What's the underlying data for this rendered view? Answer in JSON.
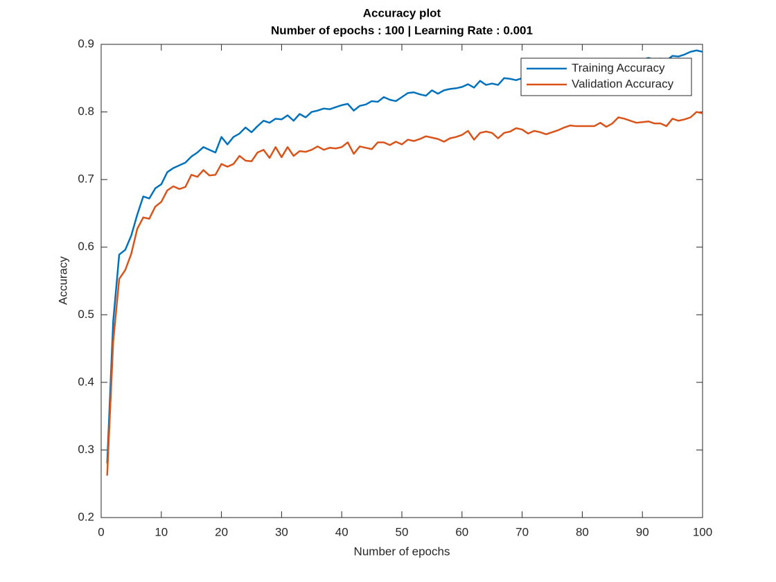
{
  "chart_data": {
    "type": "line",
    "title": "Accuracy plot",
    "subtitle": "Number of epochs : 100 | Learning Rate : 0.001",
    "x_label": "Number of epochs",
    "y_label": "Accuracy",
    "x": [
      1,
      2,
      3,
      4,
      5,
      6,
      7,
      8,
      9,
      10,
      11,
      12,
      13,
      14,
      15,
      16,
      17,
      18,
      19,
      20,
      21,
      22,
      23,
      24,
      25,
      26,
      27,
      28,
      29,
      30,
      31,
      32,
      33,
      34,
      35,
      36,
      37,
      38,
      39,
      40,
      41,
      42,
      43,
      44,
      45,
      46,
      47,
      48,
      49,
      50,
      51,
      52,
      53,
      54,
      55,
      56,
      57,
      58,
      59,
      60,
      61,
      62,
      63,
      64,
      65,
      66,
      67,
      68,
      69,
      70,
      71,
      72,
      73,
      74,
      75,
      76,
      77,
      78,
      79,
      80,
      81,
      82,
      83,
      84,
      85,
      86,
      87,
      88,
      89,
      90,
      91,
      92,
      93,
      94,
      95,
      96,
      97,
      98,
      99,
      100
    ],
    "series": [
      {
        "name": "Training Accuracy",
        "color": "#0072BD",
        "values": [
          0.28,
          0.49,
          0.589,
          0.596,
          0.617,
          0.648,
          0.675,
          0.672,
          0.687,
          0.693,
          0.711,
          0.717,
          0.721,
          0.725,
          0.734,
          0.74,
          0.748,
          0.744,
          0.74,
          0.763,
          0.752,
          0.763,
          0.768,
          0.777,
          0.77,
          0.779,
          0.787,
          0.784,
          0.79,
          0.789,
          0.795,
          0.787,
          0.797,
          0.792,
          0.8,
          0.802,
          0.805,
          0.804,
          0.807,
          0.81,
          0.812,
          0.802,
          0.809,
          0.811,
          0.816,
          0.815,
          0.822,
          0.818,
          0.816,
          0.822,
          0.828,
          0.829,
          0.826,
          0.824,
          0.832,
          0.827,
          0.832,
          0.834,
          0.835,
          0.837,
          0.841,
          0.836,
          0.846,
          0.84,
          0.842,
          0.84,
          0.85,
          0.849,
          0.847,
          0.85,
          0.852,
          0.855,
          0.857,
          0.858,
          0.86,
          0.861,
          0.862,
          0.864,
          0.865,
          0.866,
          0.867,
          0.868,
          0.869,
          0.871,
          0.872,
          0.873,
          0.874,
          0.875,
          0.876,
          0.877,
          0.88,
          0.877,
          0.879,
          0.876,
          0.883,
          0.882,
          0.885,
          0.889,
          0.891,
          0.889
        ]
      },
      {
        "name": "Validation Accuracy",
        "color": "#D95319",
        "values": [
          0.262,
          0.46,
          0.553,
          0.566,
          0.59,
          0.627,
          0.644,
          0.642,
          0.66,
          0.667,
          0.684,
          0.69,
          0.686,
          0.689,
          0.707,
          0.704,
          0.714,
          0.706,
          0.707,
          0.723,
          0.719,
          0.723,
          0.735,
          0.728,
          0.727,
          0.74,
          0.744,
          0.732,
          0.748,
          0.733,
          0.748,
          0.735,
          0.742,
          0.741,
          0.744,
          0.749,
          0.744,
          0.747,
          0.746,
          0.748,
          0.755,
          0.738,
          0.749,
          0.747,
          0.745,
          0.755,
          0.755,
          0.751,
          0.756,
          0.752,
          0.759,
          0.757,
          0.76,
          0.764,
          0.762,
          0.76,
          0.756,
          0.761,
          0.763,
          0.766,
          0.772,
          0.759,
          0.769,
          0.771,
          0.769,
          0.761,
          0.769,
          0.771,
          0.776,
          0.774,
          0.768,
          0.772,
          0.77,
          0.767,
          0.77,
          0.773,
          0.777,
          0.78,
          0.779,
          0.779,
          0.779,
          0.779,
          0.784,
          0.778,
          0.783,
          0.792,
          0.79,
          0.787,
          0.784,
          0.785,
          0.786,
          0.783,
          0.783,
          0.779,
          0.79,
          0.787,
          0.789,
          0.792,
          0.8,
          0.798
        ]
      }
    ],
    "xlim": [
      0,
      100
    ],
    "xticks": [
      0,
      10,
      20,
      30,
      40,
      50,
      60,
      70,
      80,
      90,
      100
    ],
    "ylim": [
      0.2,
      0.9
    ],
    "yticks": [
      0.2,
      0.3,
      0.4,
      0.5,
      0.6,
      0.7,
      0.8,
      0.9
    ],
    "grid": false,
    "legend": "northeast"
  }
}
